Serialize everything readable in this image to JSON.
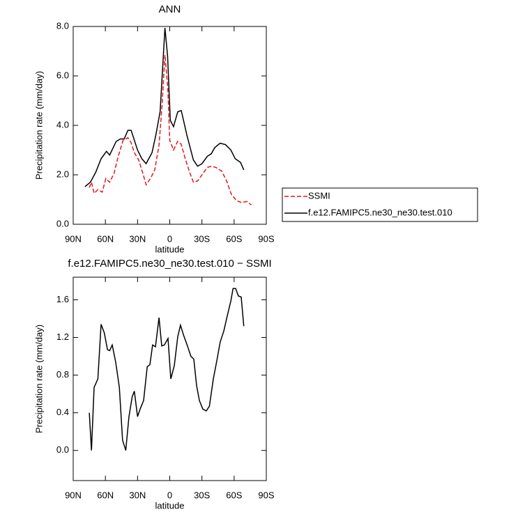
{
  "chart_data": [
    {
      "type": "line",
      "title": "ANN",
      "xlabel": "latitude",
      "ylabel": "Precipitation rate (mm/day)",
      "xlim": [
        90,
        -90
      ],
      "ylim": [
        0,
        8
      ],
      "xticks": [
        {
          "value": 90,
          "label": "90N"
        },
        {
          "value": 60,
          "label": "60N"
        },
        {
          "value": 30,
          "label": "30N"
        },
        0,
        {
          "value": -30,
          "label": "30S"
        },
        {
          "value": -60,
          "label": "60S"
        },
        {
          "value": -90,
          "label": "90S"
        }
      ],
      "yticks": [
        {
          "value": 0,
          "label": "0.0"
        },
        {
          "value": 2,
          "label": "2.0"
        },
        {
          "value": 4,
          "label": "4.0"
        },
        {
          "value": 6,
          "label": "6.0"
        },
        {
          "value": 8,
          "label": "8.0"
        }
      ],
      "legend": "right",
      "series": [
        {
          "name": "SSMI",
          "color": "#e8141c",
          "style": "dashed",
          "x": [
            75,
            73,
            70.5,
            67,
            63,
            59.5,
            56,
            52,
            48,
            43.5,
            39,
            36,
            33,
            29,
            25,
            22,
            18,
            14,
            10,
            7,
            4.5,
            1.8,
            0,
            -3.5,
            -7.3,
            -10.5,
            -14.5,
            -18.5,
            -22,
            -26,
            -30,
            -35,
            -38.7,
            -43,
            -48.5,
            -53,
            -57.5,
            -62.5,
            -67,
            -72,
            -76
          ],
          "values": [
            1.48,
            1.7,
            1.25,
            1.4,
            1.3,
            1.85,
            1.7,
            2.05,
            2.75,
            3.4,
            3.5,
            3.3,
            2.9,
            2.6,
            2.05,
            1.6,
            1.85,
            2.2,
            3.2,
            4.9,
            6.85,
            5.5,
            3.4,
            3.0,
            3.35,
            3.25,
            2.65,
            2.1,
            1.7,
            1.75,
            2.0,
            2.3,
            2.35,
            2.3,
            2.15,
            1.75,
            1.2,
            0.95,
            0.88,
            0.92,
            0.78
          ]
        },
        {
          "name": "f.e12.FAMIPC5.ne30_ne30.test.010",
          "color": "#000000",
          "style": "solid",
          "x": [
            79,
            74,
            69,
            64,
            59,
            56,
            50,
            46,
            42.5,
            39,
            36,
            30,
            26,
            22,
            16.5,
            13,
            9,
            4.5,
            2,
            -0.5,
            -3.5,
            -7.5,
            -10.7,
            -16,
            -22,
            -26,
            -30,
            -35,
            -38.7,
            -42,
            -47,
            -52,
            -57,
            -61,
            -66,
            -69
          ],
          "values": [
            1.52,
            1.7,
            2.1,
            2.65,
            2.95,
            2.8,
            3.35,
            3.45,
            3.45,
            3.8,
            3.8,
            3.0,
            2.65,
            2.45,
            2.9,
            3.6,
            4.56,
            7.94,
            6.8,
            4.2,
            3.95,
            4.55,
            4.6,
            3.6,
            2.6,
            2.35,
            2.45,
            2.75,
            2.85,
            3.1,
            3.28,
            3.22,
            3.0,
            2.65,
            2.5,
            2.2
          ]
        }
      ]
    },
    {
      "type": "line",
      "title": "f.e12.FAMIPC5.ne30_ne30.test.010 − SSMI",
      "xlabel": "latitude",
      "ylabel": "Precipitation rate (mm/day)",
      "xlim": [
        90,
        -90
      ],
      "ylim": [
        -0.32,
        1.84
      ],
      "xticks": [
        {
          "value": 90,
          "label": "90N"
        },
        {
          "value": 60,
          "label": "60N"
        },
        {
          "value": 30,
          "label": "30N"
        },
        0,
        {
          "value": -30,
          "label": "30S"
        },
        {
          "value": -60,
          "label": "60S"
        },
        {
          "value": -90,
          "label": "90S"
        }
      ],
      "yticks": [
        {
          "value": 0,
          "label": "0.0"
        },
        {
          "value": 0.4,
          "label": "0.4"
        },
        {
          "value": 0.8,
          "label": "0.8"
        },
        {
          "value": 1.2,
          "label": "1.2"
        },
        {
          "value": 1.6,
          "label": "1.6"
        }
      ],
      "series": [
        {
          "color": "#000000",
          "style": "solid",
          "x": [
            75,
            73,
            70.5,
            67,
            64,
            61,
            58,
            56,
            53.6,
            50.4,
            47,
            44,
            41,
            38,
            35,
            33,
            30,
            27.6,
            24.4,
            21,
            18.5,
            16,
            13.3,
            10,
            7.5,
            5,
            1.6,
            -1,
            -4.2,
            -7.5,
            -10,
            -13,
            -16.5,
            -19.7,
            -22.4,
            -25,
            -27.6,
            -30.8,
            -34,
            -37,
            -40.6,
            -44,
            -47,
            -50.4,
            -53.6,
            -57,
            -59,
            -61.4,
            -64,
            -66.6,
            -69
          ],
          "values": [
            0.4,
            0.0,
            0.67,
            0.76,
            1.34,
            1.25,
            1.07,
            1.06,
            1.12,
            0.94,
            0.67,
            0.11,
            0.0,
            0.36,
            0.57,
            0.63,
            0.36,
            0.44,
            0.53,
            0.89,
            0.91,
            1.12,
            1.1,
            1.41,
            1.11,
            1.12,
            1.19,
            0.76,
            0.9,
            1.21,
            1.33,
            1.22,
            1.11,
            1.0,
            0.97,
            0.69,
            0.53,
            0.44,
            0.42,
            0.47,
            0.76,
            0.96,
            1.15,
            1.27,
            1.43,
            1.59,
            1.72,
            1.72,
            1.64,
            1.63,
            1.32
          ]
        }
      ]
    }
  ]
}
